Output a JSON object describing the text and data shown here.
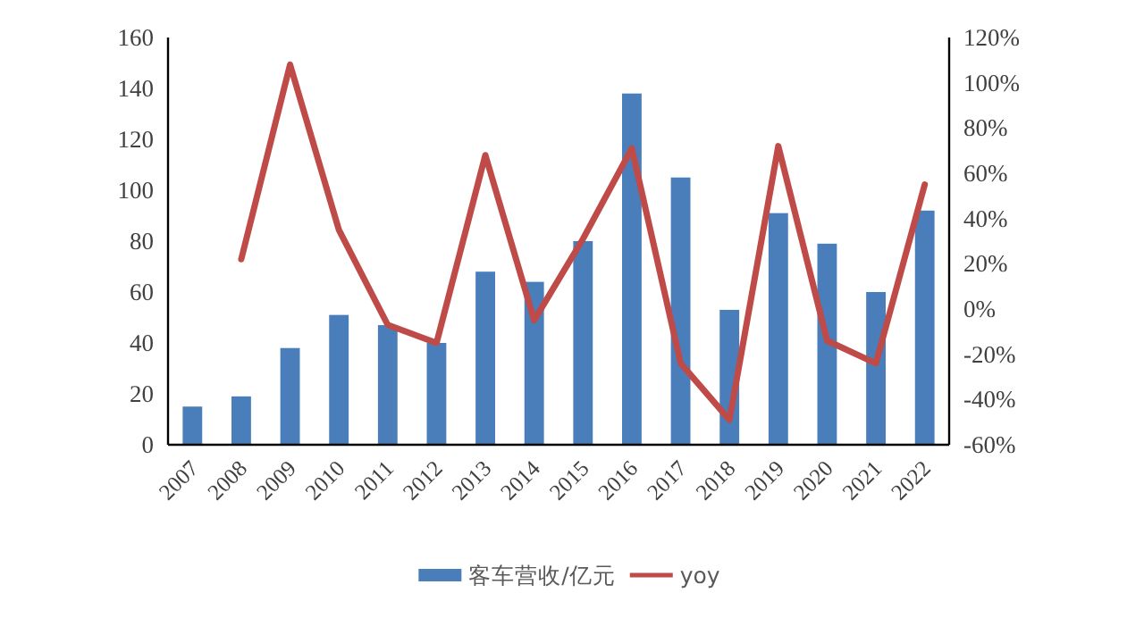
{
  "chart_data": {
    "type": "bar",
    "categories": [
      "2007",
      "2008",
      "2009",
      "2010",
      "2011",
      "2012",
      "2013",
      "2014",
      "2015",
      "2016",
      "2017",
      "2018",
      "2019",
      "2020",
      "2021",
      "2022"
    ],
    "series": [
      {
        "name": "客车营收/亿元",
        "color": "#4a7ebb",
        "values": [
          15,
          19,
          38,
          51,
          47,
          40,
          68,
          64,
          80,
          138,
          105,
          53,
          91,
          79,
          60,
          92
        ]
      },
      {
        "name": "yoy",
        "type": "line",
        "axis": "y2",
        "color": "#be4b48",
        "values": [
          null,
          22,
          108,
          35,
          -7,
          -15,
          68,
          -5,
          31,
          71,
          -24,
          -49,
          72,
          -14,
          -24,
          55
        ]
      }
    ],
    "ylim": [
      0,
      160
    ],
    "yticks": [
      0,
      20,
      40,
      60,
      80,
      100,
      120,
      140,
      160
    ],
    "y2lim": [
      -60,
      120
    ],
    "y2ticks": [
      {
        "value": -60,
        "label": "-60%"
      },
      {
        "value": -40,
        "label": "-40%"
      },
      {
        "value": -20,
        "label": "-20%"
      },
      {
        "value": 0,
        "label": "0%"
      },
      {
        "value": 20,
        "label": "20%"
      },
      {
        "value": 40,
        "label": "40%"
      },
      {
        "value": 60,
        "label": "60%"
      },
      {
        "value": 80,
        "label": "80%"
      },
      {
        "value": 100,
        "label": "100%"
      },
      {
        "value": 120,
        "label": "120%"
      }
    ],
    "legend": "bottom"
  }
}
